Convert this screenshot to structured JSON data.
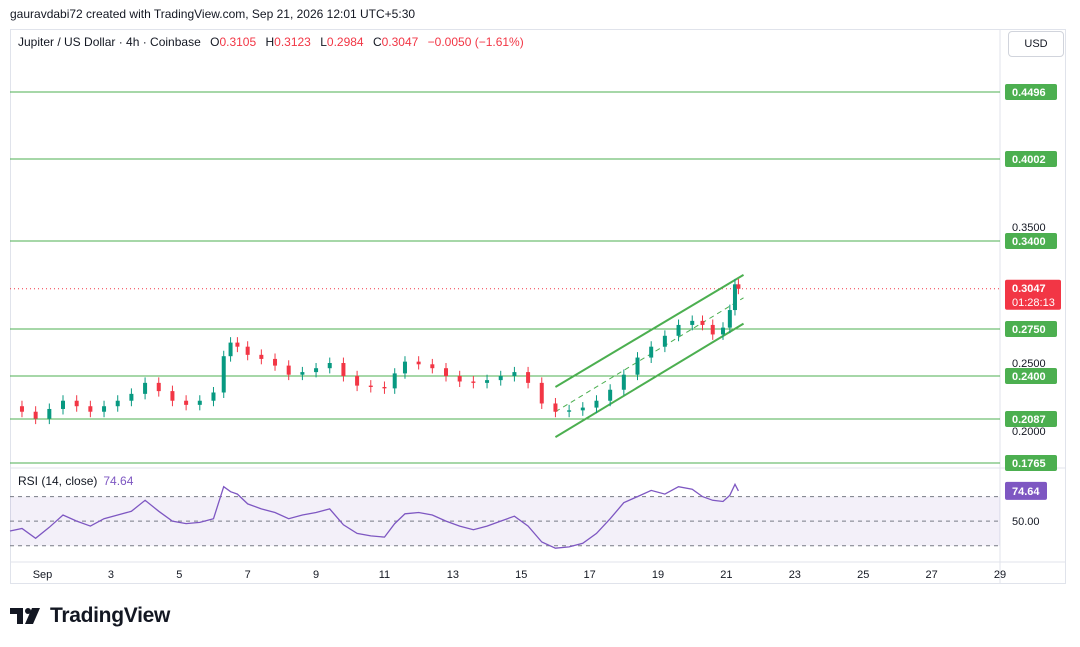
{
  "credit": "gauravdabi72 created with TradingView.com, Sep 21, 2026 12:01 UTC+5:30",
  "legend": {
    "title": "Jupiter / US Dollar · 4h · Coinbase",
    "o_label": "O",
    "o_value": "0.3105",
    "h_label": "H",
    "h_value": "0.3123",
    "l_label": "L",
    "l_value": "0.2984",
    "c_label": "C",
    "c_value": "0.3047",
    "change": "−0.0050 (−1.61%)"
  },
  "currency_button": "USD",
  "rsi": {
    "label": "RSI (14, close)",
    "value": "74.64",
    "mid_label": "50.00"
  },
  "brand": {
    "name": "TradingView"
  },
  "colors": {
    "up": "#089981",
    "down": "#f23645",
    "level": "#4caf50",
    "rsi": "#7e57c2"
  },
  "chart_data": {
    "type": "candlestick",
    "symbol": "Jupiter / US Dollar",
    "interval": "4h",
    "exchange": "Coinbase",
    "ylim": [
      0.1765,
      0.4496
    ],
    "price_ticks": [
      "0.3500",
      "0.2500",
      "0.2000"
    ],
    "support_resistance_levels": [
      {
        "value": 0.4496,
        "label": "0.4496"
      },
      {
        "value": 0.4002,
        "label": "0.4002"
      },
      {
        "value": 0.34,
        "label": "0.3400"
      },
      {
        "value": 0.275,
        "label": "0.2750"
      },
      {
        "value": 0.24,
        "label": "0.2400"
      },
      {
        "value": 0.2087,
        "label": "0.2087"
      },
      {
        "value": 0.1765,
        "label": "0.1765"
      }
    ],
    "last_price": {
      "value": 0.3047,
      "label": "0.3047",
      "countdown": "01:28:13"
    },
    "x_ticks": [
      "Sep",
      "3",
      "5",
      "7",
      "9",
      "11",
      "13",
      "15",
      "17",
      "19",
      "21",
      "23",
      "25",
      "27",
      "29"
    ],
    "x_tick_days": [
      1,
      3,
      5,
      7,
      9,
      11,
      13,
      15,
      17,
      19,
      21,
      23,
      25,
      27,
      29
    ],
    "x_range_days": [
      0.05,
      29.0
    ],
    "close_series": {
      "day": [
        0.05,
        0.4,
        0.8,
        1.2,
        1.6,
        2.0,
        2.4,
        2.8,
        3.2,
        3.6,
        4.0,
        4.4,
        4.8,
        5.2,
        5.6,
        6.0,
        6.3,
        6.5,
        6.7,
        7.0,
        7.4,
        7.8,
        8.2,
        8.6,
        9.0,
        9.4,
        9.8,
        10.2,
        10.6,
        11.0,
        11.3,
        11.6,
        12.0,
        12.4,
        12.8,
        13.2,
        13.6,
        14.0,
        14.4,
        14.8,
        15.2,
        15.6,
        16.0,
        16.4,
        16.8,
        17.2,
        17.6,
        18.0,
        18.4,
        18.8,
        19.2,
        19.6,
        20.0,
        20.3,
        20.6,
        20.9,
        21.1,
        21.25,
        21.35
      ],
      "close": [
        0.218,
        0.214,
        0.209,
        0.216,
        0.222,
        0.218,
        0.214,
        0.218,
        0.222,
        0.227,
        0.235,
        0.229,
        0.222,
        0.219,
        0.222,
        0.228,
        0.255,
        0.265,
        0.262,
        0.256,
        0.253,
        0.248,
        0.241,
        0.243,
        0.246,
        0.25,
        0.24,
        0.233,
        0.232,
        0.231,
        0.242,
        0.251,
        0.249,
        0.246,
        0.24,
        0.236,
        0.235,
        0.237,
        0.24,
        0.243,
        0.235,
        0.22,
        0.214,
        0.215,
        0.217,
        0.222,
        0.23,
        0.241,
        0.254,
        0.262,
        0.27,
        0.278,
        0.281,
        0.278,
        0.271,
        0.276,
        0.289,
        0.308,
        0.3047
      ]
    },
    "channel": {
      "upper": [
        {
          "day": 16.0,
          "price": 0.232
        },
        {
          "day": 21.5,
          "price": 0.315
        }
      ],
      "middle": [
        {
          "day": 16.0,
          "price": 0.214
        },
        {
          "day": 21.5,
          "price": 0.298
        }
      ],
      "lower": [
        {
          "day": 16.0,
          "price": 0.1955
        },
        {
          "day": 21.5,
          "price": 0.279
        }
      ]
    },
    "rsi_series": {
      "ylim": [
        20,
        90
      ],
      "levels": [
        70,
        50,
        30
      ],
      "day": [
        0.05,
        0.4,
        0.8,
        1.2,
        1.6,
        2.0,
        2.4,
        2.8,
        3.2,
        3.6,
        4.0,
        4.4,
        4.8,
        5.2,
        5.6,
        6.0,
        6.3,
        6.5,
        6.7,
        7.0,
        7.4,
        7.8,
        8.2,
        8.6,
        9.0,
        9.4,
        9.8,
        10.2,
        10.6,
        11.0,
        11.3,
        11.6,
        12.0,
        12.4,
        12.8,
        13.2,
        13.6,
        14.0,
        14.4,
        14.8,
        15.2,
        15.6,
        16.0,
        16.4,
        16.8,
        17.2,
        17.6,
        18.0,
        18.4,
        18.8,
        19.2,
        19.6,
        20.0,
        20.3,
        20.6,
        20.9,
        21.1,
        21.25,
        21.35
      ],
      "value": [
        42,
        44,
        36,
        45,
        55,
        50,
        46,
        52,
        55,
        58,
        67,
        58,
        50,
        48,
        49,
        52,
        78,
        74,
        72,
        64,
        60,
        57,
        52,
        55,
        57,
        60,
        47,
        40,
        38,
        37,
        48,
        56,
        57,
        55,
        50,
        46,
        43,
        46,
        50,
        54,
        46,
        33,
        28,
        29,
        32,
        40,
        52,
        65,
        70,
        75,
        72,
        78,
        76,
        70,
        67,
        66,
        71,
        80,
        74.64
      ]
    }
  }
}
